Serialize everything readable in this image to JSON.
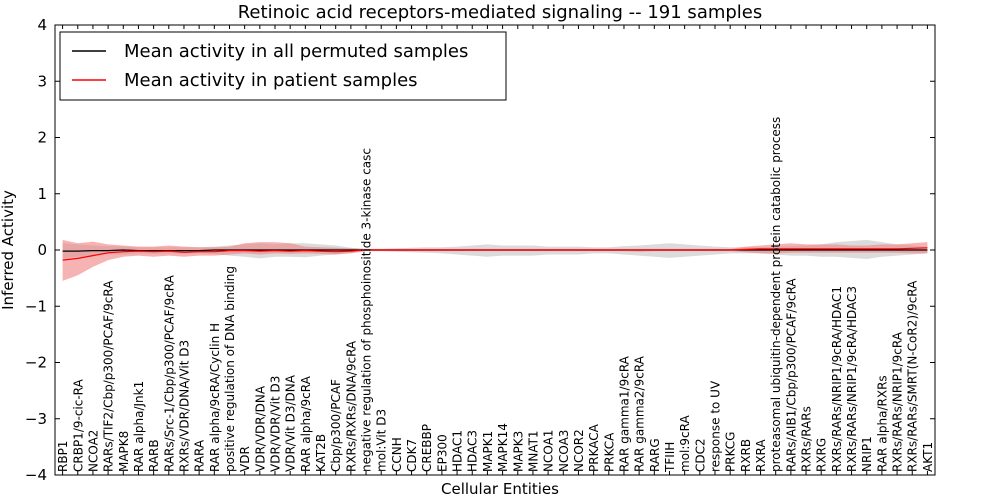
{
  "chart_data": {
    "type": "line",
    "title": "Retinoic acid receptors-mediated signaling -- 191 samples",
    "xlabel": "Cellular Entities",
    "ylabel": "Inferred Activity",
    "ylim": [
      -4,
      4
    ],
    "yticks": [
      -4,
      -3,
      -2,
      -1,
      0,
      1,
      2,
      3,
      4
    ],
    "ytick_labels": [
      "−4",
      "−3",
      "−2",
      "−1",
      "0",
      "1",
      "2",
      "3",
      "4"
    ],
    "grid": false,
    "legend_position": "top-left",
    "categories": [
      "RBP1",
      "CRBP1/9-cic-RA",
      "NCOA2",
      "RARs/TIF2/Cbp/p300/PCAF/9cRA",
      "MAPK8",
      "RAR alpha/Jnk1",
      "RARB",
      "RARs/Src-1/Cbp/p300/PCAF/9cRA",
      "RXRs/VDR/DNA/Vit D3",
      "RARA",
      "RAR alpha/9cRA/Cyclin H",
      "positive regulation of DNA binding",
      "VDR",
      "VDR/VDR/DNA",
      "VDR/VDR/Vit D3",
      "VDR/Vit D3/DNA",
      "RAR alpha/9cRA",
      "KAT2B",
      "Cbp/p300/PCAF",
      "RXRs/RXRs/DNA/9cRA",
      "negative regulation of phosphoinositide 3-kinase casc",
      "mol:Vit D3",
      "CCNH",
      "CDK7",
      "CREBBP",
      "EP300",
      "HDAC1",
      "HDAC3",
      "MAPK1",
      "MAPK14",
      "MAPK3",
      "MNAT1",
      "NCOA1",
      "NCOA3",
      "NCOR2",
      "PRKACA",
      "PRKCA",
      "RAR gamma1/9cRA",
      "RAR gamma2/9cRA",
      "RARG",
      "TFIIH",
      "mol:9cRA",
      "CDC2",
      "response to UV",
      "PRKCG",
      "RXRB",
      "RXRA",
      "proteasomal ubiquitin-dependent protein catabolic process",
      "RARs/AIB1/Cbp/p300/PCAF/9cRA",
      "RXRs/RARs",
      "RXRG",
      "RXRs/RARs/NRIP1/9cRA/HDAC1",
      "RXRs/RARs/NRIP1/9cRA/HDAC3",
      "NRIP1",
      "RAR alpha/RXRs",
      "RXRs/RARs/NRIP1/9cRA",
      "RXRs/RARs/SMRT(N-CoR2)/9cRA",
      "AKT1"
    ],
    "series": [
      {
        "name": "Mean activity in all permuted samples",
        "color": "#000000",
        "band_color": "#b0b0b0",
        "values": [
          -0.02,
          -0.02,
          -0.01,
          -0.01,
          0.0,
          -0.01,
          -0.01,
          -0.01,
          -0.01,
          -0.01,
          0.0,
          0.0,
          0.0,
          0.0,
          0.0,
          0.0,
          0.0,
          0.0,
          0.0,
          0.0,
          0.0,
          0.0,
          0.0,
          0.0,
          0.0,
          0.0,
          0.0,
          0.0,
          0.0,
          0.0,
          0.0,
          0.0,
          0.0,
          0.0,
          0.0,
          0.0,
          0.0,
          0.0,
          0.0,
          0.0,
          0.0,
          0.0,
          0.0,
          0.0,
          0.0,
          0.0,
          0.0,
          0.0,
          0.0,
          0.0,
          0.0,
          0.0,
          0.0,
          0.0,
          0.0,
          0.0,
          0.0,
          0.0
        ],
        "lower": [
          -0.15,
          -0.12,
          -0.1,
          -0.08,
          -0.08,
          -0.06,
          -0.07,
          -0.06,
          -0.07,
          -0.06,
          -0.07,
          -0.1,
          -0.12,
          -0.15,
          -0.12,
          -0.12,
          -0.13,
          -0.1,
          -0.08,
          -0.05,
          -0.02,
          -0.02,
          -0.03,
          -0.04,
          -0.05,
          -0.06,
          -0.08,
          -0.1,
          -0.12,
          -0.1,
          -0.1,
          -0.1,
          -0.08,
          -0.08,
          -0.08,
          -0.06,
          -0.06,
          -0.08,
          -0.1,
          -0.12,
          -0.14,
          -0.12,
          -0.1,
          -0.08,
          -0.06,
          -0.06,
          -0.06,
          -0.08,
          -0.1,
          -0.1,
          -0.12,
          -0.12,
          -0.14,
          -0.16,
          -0.12,
          -0.1,
          -0.08,
          -0.06
        ],
        "upper": [
          0.12,
          0.1,
          0.08,
          0.07,
          0.06,
          0.05,
          0.05,
          0.05,
          0.05,
          0.05,
          0.06,
          0.08,
          0.1,
          0.12,
          0.1,
          0.12,
          0.12,
          0.1,
          0.08,
          0.04,
          0.02,
          0.02,
          0.03,
          0.04,
          0.05,
          0.05,
          0.06,
          0.08,
          0.1,
          0.08,
          0.08,
          0.08,
          0.06,
          0.06,
          0.06,
          0.05,
          0.05,
          0.07,
          0.08,
          0.1,
          0.12,
          0.1,
          0.08,
          0.06,
          0.05,
          0.05,
          0.05,
          0.06,
          0.07,
          0.08,
          0.1,
          0.14,
          0.16,
          0.18,
          0.14,
          0.1,
          0.08,
          0.06
        ]
      },
      {
        "name": "Mean activity in patient samples",
        "color": "#ff0000",
        "band_color": "#f08080",
        "values": [
          -0.18,
          -0.15,
          -0.1,
          -0.05,
          -0.03,
          -0.02,
          -0.03,
          -0.02,
          -0.04,
          -0.03,
          -0.03,
          -0.01,
          -0.01,
          -0.02,
          -0.01,
          -0.02,
          -0.01,
          -0.02,
          -0.03,
          -0.02,
          0.0,
          0.0,
          0.0,
          0.0,
          0.0,
          0.0,
          0.0,
          0.0,
          0.0,
          0.0,
          0.0,
          0.0,
          0.0,
          0.0,
          0.0,
          0.0,
          0.0,
          0.0,
          0.0,
          0.0,
          0.0,
          0.0,
          0.0,
          0.0,
          0.0,
          0.01,
          0.02,
          0.02,
          0.02,
          0.02,
          0.02,
          0.02,
          0.02,
          0.02,
          0.02,
          0.02,
          0.03,
          0.04
        ],
        "lower": [
          -0.55,
          -0.45,
          -0.3,
          -0.18,
          -0.12,
          -0.1,
          -0.12,
          -0.1,
          -0.12,
          -0.1,
          -0.1,
          -0.08,
          -0.06,
          -0.08,
          -0.06,
          -0.07,
          -0.06,
          -0.07,
          -0.08,
          -0.06,
          -0.02,
          -0.02,
          -0.02,
          -0.02,
          -0.02,
          -0.02,
          -0.02,
          -0.02,
          -0.02,
          -0.02,
          -0.02,
          -0.02,
          -0.02,
          -0.02,
          -0.02,
          -0.02,
          -0.02,
          -0.02,
          -0.03,
          -0.02,
          -0.02,
          -0.02,
          -0.02,
          -0.02,
          -0.02,
          -0.04,
          -0.06,
          -0.06,
          -0.05,
          -0.05,
          -0.05,
          -0.05,
          -0.05,
          -0.05,
          -0.05,
          -0.05,
          -0.06,
          -0.06
        ],
        "upper": [
          0.18,
          0.12,
          0.15,
          0.1,
          0.08,
          0.06,
          0.06,
          0.08,
          0.06,
          0.05,
          0.05,
          0.06,
          0.12,
          0.14,
          0.14,
          0.12,
          0.06,
          0.05,
          0.04,
          0.03,
          0.02,
          0.02,
          0.02,
          0.02,
          0.02,
          0.02,
          0.02,
          0.02,
          0.02,
          0.02,
          0.02,
          0.02,
          0.02,
          0.02,
          0.02,
          0.02,
          0.02,
          0.02,
          0.02,
          0.02,
          0.02,
          0.02,
          0.02,
          0.02,
          0.02,
          0.06,
          0.08,
          0.1,
          0.12,
          0.1,
          0.1,
          0.1,
          0.08,
          0.08,
          0.1,
          0.1,
          0.12,
          0.14
        ]
      }
    ]
  }
}
